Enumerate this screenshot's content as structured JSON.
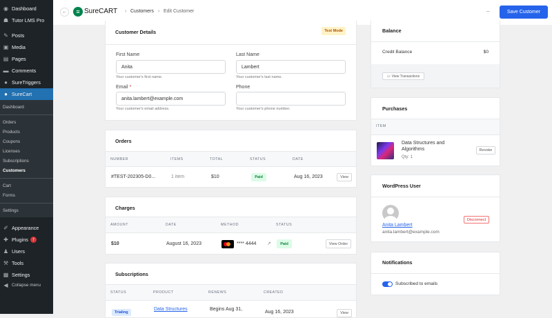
{
  "sidebar": {
    "top": [
      {
        "label": "Dashboard",
        "icon": "dashboard-icon"
      },
      {
        "label": "Tutor LMS Pro",
        "icon": "tutor-icon"
      },
      {
        "label": "Posts",
        "icon": "pin-icon"
      },
      {
        "label": "Media",
        "icon": "media-icon"
      },
      {
        "label": "Pages",
        "icon": "pages-icon"
      },
      {
        "label": "Comments",
        "icon": "comment-icon"
      },
      {
        "label": "SureTriggers",
        "icon": "suretriggers-icon"
      }
    ],
    "active": "SureCart",
    "submenu": [
      "Dashboard",
      "Orders",
      "Products",
      "Coupons",
      "Licenses",
      "Subscriptions",
      "Customers",
      "Cart",
      "Forms",
      "Settings"
    ],
    "bottom": [
      {
        "label": "Appearance"
      },
      {
        "label": "Plugins",
        "badge": "7"
      },
      {
        "label": "Users"
      },
      {
        "label": "Tools"
      },
      {
        "label": "Settings"
      }
    ],
    "collapse": "Collapse menu"
  },
  "header": {
    "logo": "SureCART",
    "breadcrumb": [
      "Customers",
      "Edit Customer"
    ],
    "save": "Save Customer"
  },
  "details": {
    "title": "Customer Details",
    "mode": "Test Mode",
    "first_label": "First Name",
    "first_value": "Anita",
    "first_help": "Your customer's first name.",
    "last_label": "Last Name",
    "last_value": "Lambert",
    "last_help": "Your customer's last name.",
    "email_label": "Email",
    "email_value": "anita.lambert@example.com",
    "email_help": "Your customer's email address.",
    "phone_label": "Phone",
    "phone_value": "",
    "phone_help": "Your customer's phone number."
  },
  "orders": {
    "title": "Orders",
    "cols": [
      "NUMBER",
      "ITEMS",
      "TOTAL",
      "STATUS",
      "DATE"
    ],
    "row": {
      "number": "#TEST-202305-D0...",
      "items": "1 item",
      "total": "$10",
      "status": "Paid",
      "date": "Aug 16, 2023",
      "action": "View"
    }
  },
  "charges": {
    "title": "Charges",
    "cols": [
      "AMOUNT",
      "DATE",
      "METHOD",
      "STATUS"
    ],
    "row": {
      "amount": "$10",
      "date": "August 16, 2023",
      "method": "**** 4444",
      "status": "Paid",
      "action": "View Order"
    }
  },
  "subscriptions": {
    "title": "Subscriptions",
    "cols": [
      "STATUS",
      "PRODUCT",
      "RENEWS",
      "CREATED"
    ],
    "row": {
      "status": "Trialing",
      "product": "Data Structures",
      "renews": "Begins Aug 31,",
      "created": "Aug 16, 2023",
      "action": "View"
    }
  },
  "balance": {
    "title": "Balance",
    "label": "Credit Balance",
    "value": "$0",
    "action": "View Transactions"
  },
  "purchases": {
    "title": "Purchases",
    "col": "ITEM",
    "item": {
      "name": "Data Structures and Algorithms",
      "qty": "Qty: 1",
      "action": "Revoke"
    }
  },
  "wpuser": {
    "title": "WordPress User",
    "name": "Anita Lambert",
    "email": "anita.lambert@example.com",
    "action": "Disconnect"
  },
  "notifications": {
    "title": "Notifications",
    "toggle": "Subscribed to emails",
    "enabled": true
  },
  "colors": {
    "accent": "#2563eb",
    "wp_blue": "#2271b1",
    "brand": "#01824c"
  }
}
